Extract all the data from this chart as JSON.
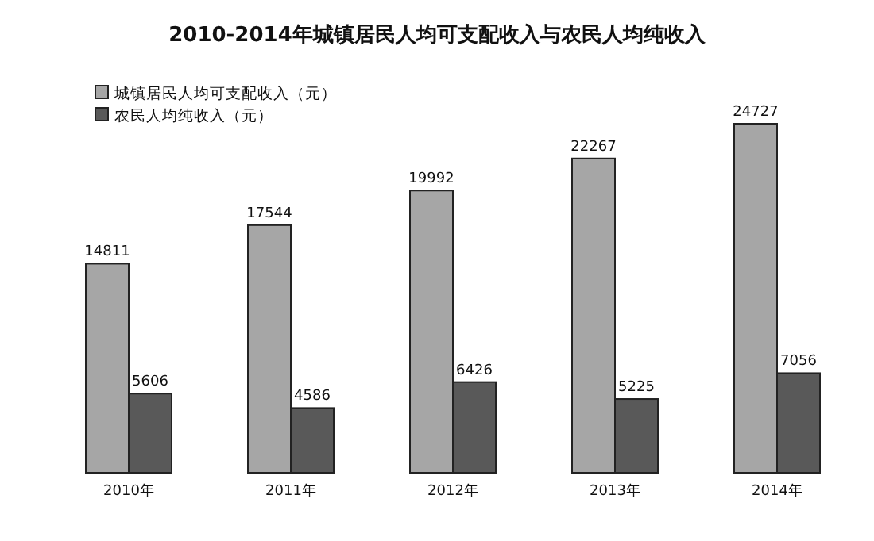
{
  "chart_data": {
    "type": "bar",
    "title": "2010-2014年城镇居民人均可支配收入与农民人均纯收入",
    "categories": [
      "2010年",
      "2011年",
      "2012年",
      "2013年",
      "2014年"
    ],
    "series": [
      {
        "name": "城镇居民人均可支配收入（元）",
        "color": "#a6a6a6",
        "values": [
          14811,
          17544,
          19992,
          22267,
          24727
        ]
      },
      {
        "name": "农民人均纯收入（元）",
        "color": "#595959",
        "values": [
          5606,
          4586,
          6426,
          5225,
          7056
        ]
      }
    ],
    "data_labels": true,
    "legend": "top left"
  }
}
